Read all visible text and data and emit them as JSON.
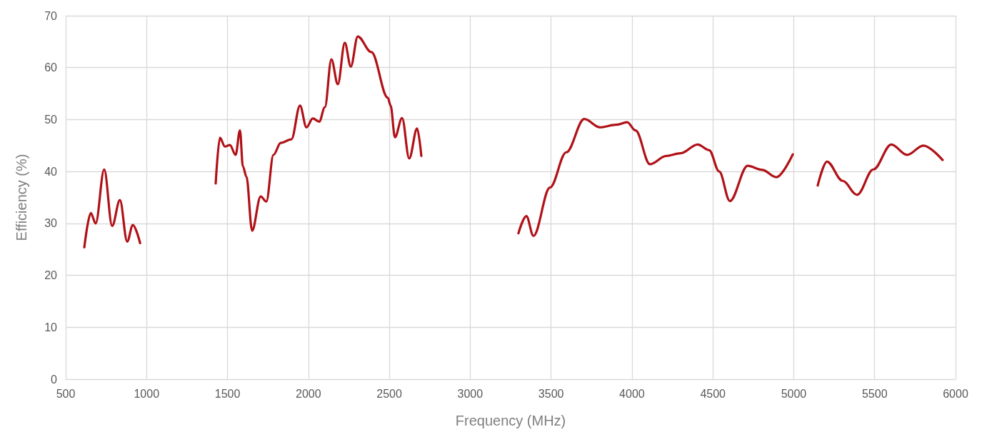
{
  "chart_data": {
    "type": "line",
    "xlabel": "Frequency (MHz)",
    "ylabel": "Efficiency (%)",
    "x": [
      615,
      655,
      685,
      738,
      787,
      835,
      880,
      915,
      960,
      961,
      1427,
      1453,
      1484,
      1515,
      1550,
      1577,
      1595,
      1617,
      1652,
      1705,
      1740,
      1784,
      1829,
      1895,
      1948,
      1988,
      2027,
      2067,
      2102,
      2142,
      2182,
      2225,
      2262,
      2305,
      2389,
      2491,
      2508,
      2535,
      2579,
      2623,
      2672,
      2698,
      2699,
      3298,
      3347,
      3391,
      3493,
      3594,
      3705,
      3802,
      3903,
      3970,
      4022,
      4111,
      4212,
      4300,
      4406,
      4477,
      4539,
      4605,
      4715,
      4804,
      4892,
      4994,
      4995,
      5148,
      5205,
      5302,
      5391,
      5492,
      5603,
      5700,
      5801,
      5920
    ],
    "series": [
      {
        "color": "#b01117",
        "values": [
          25.4,
          32,
          30,
          40.4,
          29.5,
          34.5,
          26.5,
          29.7,
          26.2,
          null,
          37.7,
          46.5,
          44.8,
          45.1,
          43.2,
          47.9,
          41,
          39,
          28.6,
          35.2,
          34.2,
          43.2,
          45.5,
          46.2,
          52.7,
          48.5,
          50.2,
          49.6,
          52.4,
          61.6,
          56.8,
          64.8,
          60.2,
          66,
          63,
          54.2,
          52.7,
          46.6,
          50.3,
          42.5,
          48.3,
          43,
          null,
          28.1,
          31.4,
          27.6,
          36.9,
          43.7,
          50.1,
          48.5,
          49,
          49.5,
          47.9,
          41.4,
          43,
          43.5,
          45.2,
          44.1,
          40,
          34.3,
          41.1,
          40.3,
          38.9,
          43.3,
          null,
          37.3,
          41.9,
          38.2,
          35.5,
          40.4,
          45.2,
          43.2,
          45,
          42.2
        ]
      }
    ],
    "xlim": [
      500,
      6000
    ],
    "xticks": [
      500,
      1000,
      1500,
      2000,
      2500,
      3000,
      3500,
      4000,
      4500,
      5000,
      5500,
      6000
    ],
    "ylim": [
      0,
      70
    ],
    "yticks": [
      0,
      10,
      20,
      30,
      40,
      50,
      60,
      70
    ],
    "grid": true,
    "marker": "none",
    "line_style": "solid"
  }
}
